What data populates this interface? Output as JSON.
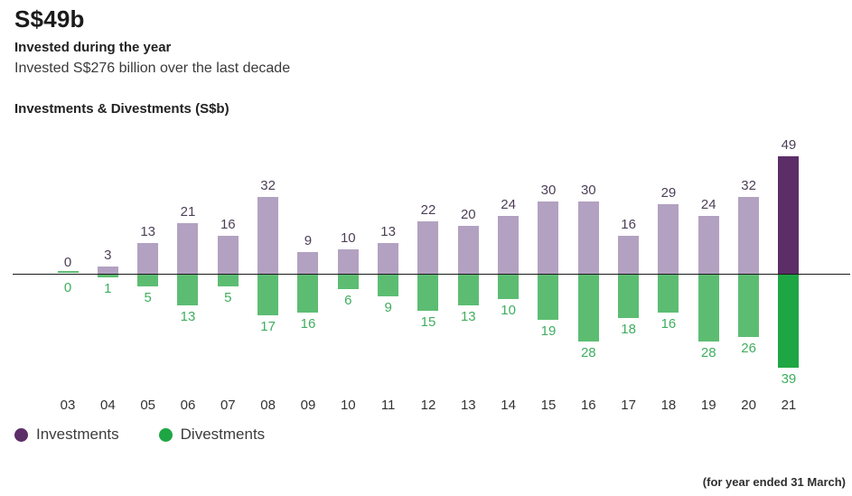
{
  "header": {
    "headline": "S$49b",
    "subhead": "Invested during the year",
    "description": "Invested S$276 billion over the last decade"
  },
  "chart": {
    "title": "Investments & Divestments (S$b)",
    "footnote": "(for year ended 31 March)"
  },
  "chart_data": {
    "type": "bar",
    "title": "Investments & Divestments (S$b)",
    "categories": [
      "03",
      "04",
      "05",
      "06",
      "07",
      "08",
      "09",
      "10",
      "11",
      "12",
      "13",
      "14",
      "15",
      "16",
      "17",
      "18",
      "19",
      "20",
      "21"
    ],
    "series": [
      {
        "name": "Investments",
        "direction": "up",
        "values": [
          0,
          3,
          13,
          21,
          16,
          32,
          9,
          10,
          13,
          22,
          20,
          24,
          30,
          30,
          16,
          29,
          24,
          32,
          49
        ],
        "bar_color": "#b3a1c1",
        "highlight_color": "#5c2e68",
        "label_color": "#4c3f57"
      },
      {
        "name": "Divestments",
        "direction": "down",
        "values": [
          0,
          1,
          5,
          13,
          5,
          17,
          16,
          6,
          9,
          15,
          13,
          10,
          19,
          28,
          18,
          16,
          28,
          26,
          39
        ],
        "bar_color": "#5cbd72",
        "highlight_color": "#1fa644",
        "label_color": "#3fae5f"
      }
    ],
    "highlight_category": "21",
    "value_labels": "all",
    "grid": false,
    "zero_line": true,
    "ylim": [
      -39,
      49
    ],
    "legend_position": "bottom-left"
  }
}
